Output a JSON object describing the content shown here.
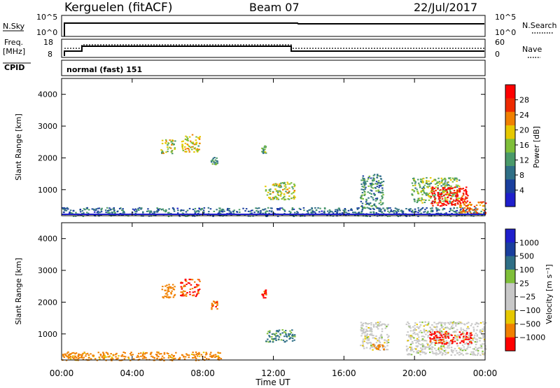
{
  "header": {
    "station": "Kerguelen (fitACF)",
    "beam": "Beam 07",
    "date": "22/Jul/2017"
  },
  "nsky_panel": {
    "left_label": "N.Sky",
    "left_ticks": [
      "10^5",
      "10^0"
    ],
    "right_label": "N.Search",
    "right_ticks": [
      "10^5",
      "10^0"
    ]
  },
  "freq_panel": {
    "left_label_line1": "Freq.",
    "left_label_line2": "[MHz]",
    "left_ticks": [
      "18",
      "8"
    ],
    "right_label": "Nave",
    "right_ticks": [
      "60",
      "0"
    ],
    "cpid_label": "CPID",
    "cpid_value": "normal (fast) 151"
  },
  "time_axis": {
    "ticks": [
      "00:00",
      "04:00",
      "08:00",
      "12:00",
      "16:00",
      "20:00",
      "00:00"
    ],
    "title": "Time UT"
  },
  "colors": {
    "scale": [
      "#1f1fcc",
      "#1a3f9e",
      "#2f6f86",
      "#4a9a6a",
      "#7fbf3a",
      "#e6c800",
      "#f08000",
      "#ee2a00",
      "#ff0000",
      "#c8c8c8"
    ]
  },
  "chart_data": [
    {
      "type": "heatmap",
      "parameter": "Power",
      "ylabel": "Slant Range [km]",
      "xlabel": "",
      "x_range_hours": [
        0,
        24
      ],
      "ylim_km": [
        180,
        4500
      ],
      "yticks": [
        "1000",
        "2000",
        "3000",
        "4000"
      ],
      "colorbar": {
        "label": "Power [dB]",
        "ticks": [
          "28",
          "24",
          "20",
          "16",
          "12",
          "8",
          "4"
        ],
        "range": [
          0,
          30
        ]
      },
      "echo_regions": [
        {
          "t_start": 0.0,
          "t_end": 24.0,
          "range_low": 180,
          "range_high": 450,
          "value": 8
        },
        {
          "t_start": 5.6,
          "t_end": 6.4,
          "range_low": 2150,
          "range_high": 2600,
          "value": 16
        },
        {
          "t_start": 6.7,
          "t_end": 7.8,
          "range_low": 2200,
          "range_high": 2750,
          "value": 18
        },
        {
          "t_start": 8.4,
          "t_end": 8.8,
          "range_low": 1800,
          "range_high": 2050,
          "value": 12
        },
        {
          "t_start": 11.3,
          "t_end": 11.55,
          "range_low": 2150,
          "range_high": 2400,
          "value": 12
        },
        {
          "t_start": 11.5,
          "t_end": 13.2,
          "range_low": 700,
          "range_high": 1250,
          "value": 16
        },
        {
          "t_start": 16.9,
          "t_end": 18.2,
          "range_low": 400,
          "range_high": 1500,
          "value": 10
        },
        {
          "t_start": 19.8,
          "t_end": 22.5,
          "range_low": 600,
          "range_high": 1400,
          "value": 14
        },
        {
          "t_start": 20.9,
          "t_end": 23.0,
          "range_low": 500,
          "range_high": 1100,
          "value": 28
        },
        {
          "t_start": 22.5,
          "t_end": 24.0,
          "range_low": 250,
          "range_high": 650,
          "value": 22
        }
      ]
    },
    {
      "type": "heatmap",
      "parameter": "Velocity",
      "ylabel": "Slant Range [km]",
      "xlabel": "Time UT",
      "x_range_hours": [
        0,
        24
      ],
      "ylim_km": [
        180,
        4500
      ],
      "yticks": [
        "1000",
        "2000",
        "3000",
        "4000"
      ],
      "colorbar": {
        "label": "Velocity [m s⁻¹]",
        "ticks": [
          "1000",
          "500",
          "100",
          "25",
          "−25",
          "−100",
          "−500",
          "−1000"
        ],
        "range": [
          -1000,
          1000
        ]
      },
      "echo_regions": [
        {
          "t_start": 0.0,
          "t_end": 9.0,
          "range_low": 180,
          "range_high": 450,
          "value": -150
        },
        {
          "t_start": 5.6,
          "t_end": 6.4,
          "range_low": 2150,
          "range_high": 2600,
          "value": -300
        },
        {
          "t_start": 6.7,
          "t_end": 7.8,
          "range_low": 2200,
          "range_high": 2750,
          "value": -550
        },
        {
          "t_start": 8.4,
          "t_end": 8.8,
          "range_low": 1800,
          "range_high": 2050,
          "value": -400
        },
        {
          "t_start": 11.3,
          "t_end": 11.55,
          "range_low": 2150,
          "range_high": 2400,
          "value": -450
        },
        {
          "t_start": 11.5,
          "t_end": 13.2,
          "range_low": 750,
          "range_high": 1150,
          "value": 120
        },
        {
          "t_start": 16.9,
          "t_end": 18.5,
          "range_low": 500,
          "range_high": 1400,
          "value": 0
        },
        {
          "t_start": 17.6,
          "t_end": 18.4,
          "range_low": 500,
          "range_high": 700,
          "value": -200
        },
        {
          "t_start": 19.5,
          "t_end": 24.0,
          "range_low": 350,
          "range_high": 1400,
          "value": 0
        },
        {
          "t_start": 20.8,
          "t_end": 23.2,
          "range_low": 700,
          "range_high": 1100,
          "value": -700
        }
      ]
    }
  ]
}
